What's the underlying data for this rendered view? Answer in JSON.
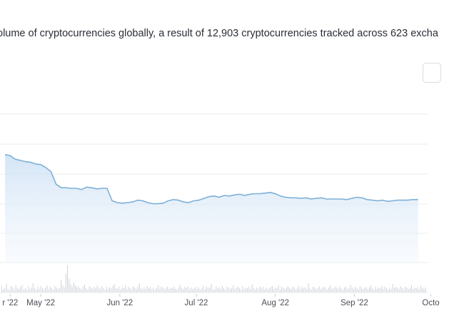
{
  "header": {
    "description": "olume of cryptocurrencies globally, a result of 12,903 cryptocurrencies tracked across 623 excha"
  },
  "chart_data": {
    "type": "area",
    "title": "",
    "xlabel": "",
    "ylabel": "",
    "grid": true,
    "series": [
      {
        "kind": "line",
        "color": "#7eb0d8",
        "x": [
          "2022-04-24",
          "2022-04-26",
          "2022-04-28",
          "2022-04-30",
          "2022-05-02",
          "2022-05-04",
          "2022-05-06",
          "2022-05-08",
          "2022-05-10",
          "2022-05-12",
          "2022-05-14",
          "2022-05-16",
          "2022-05-18",
          "2022-05-20",
          "2022-05-22",
          "2022-05-24",
          "2022-05-26",
          "2022-05-28",
          "2022-05-30",
          "2022-06-01",
          "2022-06-03",
          "2022-06-05",
          "2022-06-07",
          "2022-06-09",
          "2022-06-11",
          "2022-06-13",
          "2022-06-15",
          "2022-06-17",
          "2022-06-19",
          "2022-06-21",
          "2022-06-23",
          "2022-06-25",
          "2022-06-27",
          "2022-06-29",
          "2022-07-01",
          "2022-07-03",
          "2022-07-05",
          "2022-07-07",
          "2022-07-09",
          "2022-07-11",
          "2022-07-13",
          "2022-07-15",
          "2022-07-17",
          "2022-07-19",
          "2022-07-21",
          "2022-07-23",
          "2022-07-25",
          "2022-07-27",
          "2022-07-29",
          "2022-07-31",
          "2022-08-02",
          "2022-08-04",
          "2022-08-06",
          "2022-08-08",
          "2022-08-10",
          "2022-08-12",
          "2022-08-14",
          "2022-08-16",
          "2022-08-18",
          "2022-08-20",
          "2022-08-22",
          "2022-08-24",
          "2022-08-26",
          "2022-08-28",
          "2022-08-30",
          "2022-09-01",
          "2022-09-03",
          "2022-09-05",
          "2022-09-07",
          "2022-09-09",
          "2022-09-11",
          "2022-09-13",
          "2022-09-15",
          "2022-09-17",
          "2022-09-19",
          "2022-09-21",
          "2022-09-23",
          "2022-09-25",
          "2022-09-27",
          "2022-09-29",
          "2022-10-01",
          "2022-10-03"
        ],
        "values": [
          1.82,
          1.8,
          1.74,
          1.72,
          1.7,
          1.69,
          1.66,
          1.65,
          1.6,
          1.53,
          1.32,
          1.26,
          1.26,
          1.25,
          1.25,
          1.23,
          1.27,
          1.26,
          1.24,
          1.25,
          1.25,
          1.04,
          1.01,
          1.0,
          1.01,
          1.02,
          1.05,
          1.04,
          1.01,
          0.99,
          0.99,
          1.0,
          1.04,
          1.06,
          1.05,
          1.02,
          1.01,
          1.04,
          1.05,
          1.08,
          1.11,
          1.12,
          1.1,
          1.13,
          1.12,
          1.14,
          1.15,
          1.13,
          1.15,
          1.16,
          1.16,
          1.17,
          1.18,
          1.16,
          1.12,
          1.1,
          1.09,
          1.09,
          1.08,
          1.09,
          1.07,
          1.08,
          1.09,
          1.07,
          1.07,
          1.07,
          1.07,
          1.06,
          1.08,
          1.1,
          1.09,
          1.06,
          1.05,
          1.04,
          1.05,
          1.03,
          1.04,
          1.05,
          1.05,
          1.05,
          1.06,
          1.06
        ]
      },
      {
        "kind": "bar",
        "color": "#c9ced6",
        "values": [
          0.8,
          0.4,
          0.6,
          1.2,
          0.5,
          0.3,
          0.9,
          0.7,
          0.4,
          1.0,
          0.6,
          0.5,
          0.8,
          1.1,
          0.4,
          0.6,
          0.3,
          0.9,
          0.5,
          0.7,
          1.3,
          0.6,
          0.4,
          0.8,
          0.5,
          0.9,
          0.6,
          0.4,
          0.7,
          1.0,
          0.5,
          0.8,
          0.6,
          0.4,
          0.9,
          0.7,
          0.5,
          0.6,
          1.8,
          1.0,
          0.7,
          2.6,
          3.8,
          1.9,
          1.2,
          0.8,
          1.4,
          1.0,
          0.7,
          0.9,
          0.6,
          0.5,
          0.8,
          1.1,
          0.6,
          0.4,
          0.9,
          0.7,
          0.5,
          0.8,
          0.6,
          1.0,
          0.7,
          0.5,
          0.9,
          0.6,
          0.4,
          0.8,
          0.5,
          0.7,
          0.6,
          0.9,
          1.2,
          0.6,
          0.5,
          0.8,
          0.4,
          0.7,
          0.6,
          1.0,
          0.5,
          0.8,
          0.6,
          0.4,
          0.9,
          0.7,
          0.5,
          0.8,
          1.3,
          0.6,
          0.4,
          0.7,
          0.5,
          0.9,
          0.6,
          0.8,
          0.5,
          0.7,
          0.4,
          0.6,
          1.0,
          0.5,
          0.8,
          0.7,
          0.4,
          0.6,
          0.9,
          0.5,
          0.7,
          0.6,
          0.8,
          0.5,
          0.4,
          0.7,
          1.1,
          0.6,
          0.5,
          0.8,
          0.6,
          0.9,
          0.4,
          0.7,
          0.5,
          0.6,
          0.8,
          0.5,
          0.7,
          0.4,
          0.6,
          0.9,
          0.5,
          0.8,
          0.6,
          0.7,
          1.2,
          0.5,
          0.4,
          0.8,
          0.6,
          0.7,
          0.5,
          0.9,
          0.6,
          0.4,
          0.8,
          0.7,
          0.5,
          0.6,
          1.0,
          0.5,
          0.7,
          0.8,
          0.6,
          0.4,
          0.9,
          0.5,
          0.7,
          0.6,
          0.8,
          0.5,
          1.1,
          0.6,
          0.4,
          0.7,
          0.5,
          0.9,
          0.6,
          0.8,
          0.4,
          0.7,
          0.5,
          0.6,
          0.8,
          0.9,
          0.5,
          0.7,
          0.6,
          1.0,
          0.4,
          0.8,
          0.6,
          0.5,
          0.7,
          0.9,
          0.6,
          0.5,
          0.8,
          0.7,
          0.4,
          0.6,
          0.9,
          0.5,
          0.8,
          0.6,
          0.7,
          0.5,
          1.3,
          0.6,
          0.4,
          0.8,
          0.7,
          0.5,
          0.6,
          0.9,
          0.5,
          0.7,
          0.8,
          0.6,
          0.4,
          0.7,
          1.0,
          0.5,
          0.6,
          0.8,
          0.7,
          0.5,
          0.9,
          0.6,
          0.4,
          0.7,
          0.8,
          0.5,
          0.6,
          1.1,
          0.7,
          0.5,
          0.8,
          0.6,
          0.4,
          0.9,
          0.7,
          0.5,
          0.6,
          0.8,
          0.5,
          0.7,
          1.0,
          0.6,
          0.4,
          0.8,
          0.5,
          0.7,
          0.6,
          0.9,
          0.5,
          0.8,
          0.6,
          0.4,
          0.7,
          0.5,
          1.2,
          0.6,
          0.8,
          0.7,
          0.5,
          0.9,
          0.6,
          0.4,
          0.8,
          0.7,
          0.5,
          0.6,
          1.0,
          0.5,
          0.7,
          0.6,
          0.8,
          0.4,
          0.9,
          0.6,
          0.5,
          0.7
        ]
      }
    ],
    "x_ticks": [
      {
        "label": "r '22",
        "date": "2022-04-26"
      },
      {
        "label": "May '22",
        "date": "2022-05-08"
      },
      {
        "label": "Jun '22",
        "date": "2022-06-08"
      },
      {
        "label": "Jul '22",
        "date": "2022-07-08"
      },
      {
        "label": "Aug '22",
        "date": "2022-08-08"
      },
      {
        "label": "Sep '22",
        "date": "2022-09-08"
      },
      {
        "label": "Octo",
        "date": "2022-10-08"
      }
    ],
    "gridlines": 4
  }
}
